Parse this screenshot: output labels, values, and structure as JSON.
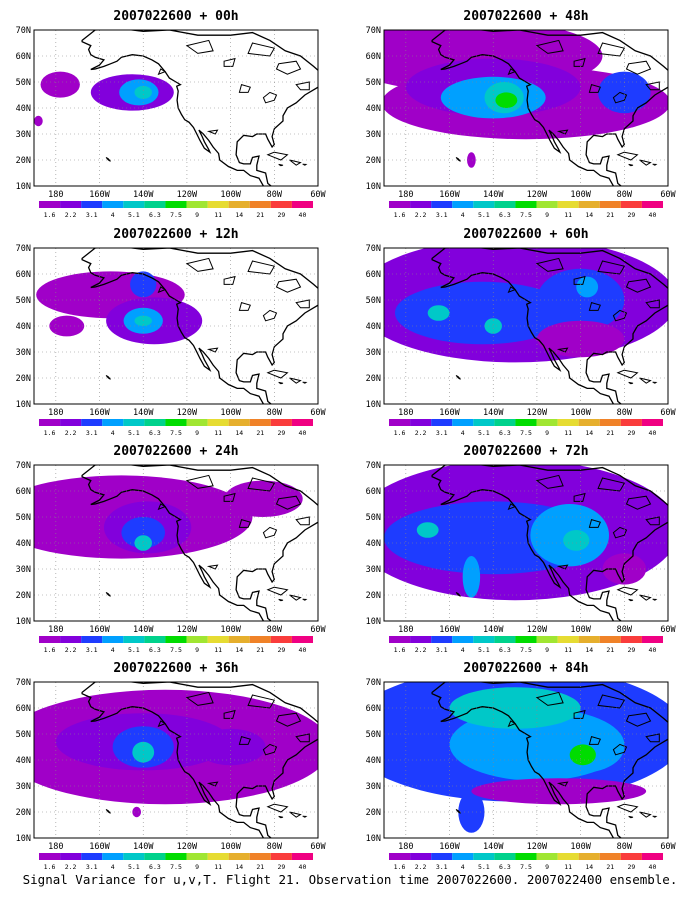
{
  "panels": [
    {
      "title": "2007022600 + 00h",
      "lead": "00h",
      "blobs": [
        {
          "lon": -145,
          "lat": 46,
          "rx": 19,
          "ry": 7,
          "lvl": 1
        },
        {
          "lon": -178,
          "lat": 49,
          "rx": 9,
          "ry": 5,
          "lvl": 0
        },
        {
          "lon": -142,
          "lat": 46,
          "rx": 9,
          "ry": 5,
          "lvl": 3
        },
        {
          "lon": -140,
          "lat": 46,
          "rx": 4,
          "ry": 2.5,
          "lvl": 4
        },
        {
          "lon": -188,
          "lat": 35,
          "rx": 2,
          "ry": 2,
          "lvl": 0
        }
      ]
    },
    {
      "title": "2007022600 + 48h",
      "lead": "48h",
      "blobs": [
        {
          "lon": -150,
          "lat": 60,
          "rx": 60,
          "ry": 14,
          "lvl": 0
        },
        {
          "lon": -125,
          "lat": 42,
          "rx": 66,
          "ry": 14,
          "lvl": 0
        },
        {
          "lon": -140,
          "lat": 48,
          "rx": 40,
          "ry": 11,
          "lvl": 1
        },
        {
          "lon": -140,
          "lat": 44,
          "rx": 24,
          "ry": 8,
          "lvl": 3
        },
        {
          "lon": -135,
          "lat": 44,
          "rx": 9,
          "ry": 6,
          "lvl": 4
        },
        {
          "lon": -134,
          "lat": 43,
          "rx": 5,
          "ry": 3,
          "lvl": 6
        },
        {
          "lon": -80,
          "lat": 46,
          "rx": 12,
          "ry": 8,
          "lvl": 2
        },
        {
          "lon": -150,
          "lat": 20,
          "rx": 2,
          "ry": 3,
          "lvl": 0
        }
      ]
    },
    {
      "title": "2007022600 + 12h",
      "lead": "12h",
      "blobs": [
        {
          "lon": -155,
          "lat": 52,
          "rx": 34,
          "ry": 9,
          "lvl": 0
        },
        {
          "lon": -135,
          "lat": 42,
          "rx": 22,
          "ry": 9,
          "lvl": 1
        },
        {
          "lon": -140,
          "lat": 42,
          "rx": 9,
          "ry": 5,
          "lvl": 3
        },
        {
          "lon": -140,
          "lat": 42,
          "rx": 4,
          "ry": 2,
          "lvl": 4
        },
        {
          "lon": -140,
          "lat": 56,
          "rx": 6,
          "ry": 5,
          "lvl": 2
        },
        {
          "lon": -175,
          "lat": 40,
          "rx": 8,
          "ry": 4,
          "lvl": 0
        }
      ]
    },
    {
      "title": "2007022600 + 60h",
      "lead": "60h",
      "blobs": [
        {
          "lon": -130,
          "lat": 50,
          "rx": 74,
          "ry": 24,
          "lvl": 1
        },
        {
          "lon": -145,
          "lat": 45,
          "rx": 40,
          "ry": 12,
          "lvl": 2
        },
        {
          "lon": -100,
          "lat": 50,
          "rx": 20,
          "ry": 12,
          "lvl": 2
        },
        {
          "lon": -170,
          "lat": 45,
          "rx": 12,
          "ry": 8,
          "lvl": 2
        },
        {
          "lon": -165,
          "lat": 45,
          "rx": 5,
          "ry": 3,
          "lvl": 4
        },
        {
          "lon": -140,
          "lat": 40,
          "rx": 4,
          "ry": 3,
          "lvl": 4
        },
        {
          "lon": -97,
          "lat": 55,
          "rx": 5,
          "ry": 4,
          "lvl": 3
        },
        {
          "lon": -100,
          "lat": 35,
          "rx": 20,
          "ry": 7,
          "lvl": 0
        }
      ]
    },
    {
      "title": "2007022600 + 24h",
      "lead": "24h",
      "blobs": [
        {
          "lon": -150,
          "lat": 50,
          "rx": 60,
          "ry": 16,
          "lvl": 0
        },
        {
          "lon": -138,
          "lat": 46,
          "rx": 20,
          "ry": 10,
          "lvl": 1
        },
        {
          "lon": -140,
          "lat": 44,
          "rx": 10,
          "ry": 6,
          "lvl": 2
        },
        {
          "lon": -140,
          "lat": 40,
          "rx": 4,
          "ry": 3,
          "lvl": 4
        },
        {
          "lon": -85,
          "lat": 57,
          "rx": 18,
          "ry": 7,
          "lvl": 0
        }
      ]
    },
    {
      "title": "2007022600 + 72h",
      "lead": "72h",
      "blobs": [
        {
          "lon": -130,
          "lat": 45,
          "rx": 75,
          "ry": 27,
          "lvl": 1
        },
        {
          "lon": -140,
          "lat": 42,
          "rx": 50,
          "ry": 14,
          "lvl": 2
        },
        {
          "lon": -105,
          "lat": 43,
          "rx": 18,
          "ry": 12,
          "lvl": 3
        },
        {
          "lon": -102,
          "lat": 41,
          "rx": 6,
          "ry": 4,
          "lvl": 4
        },
        {
          "lon": -150,
          "lat": 27,
          "rx": 4,
          "ry": 8,
          "lvl": 3
        },
        {
          "lon": -170,
          "lat": 45,
          "rx": 5,
          "ry": 3,
          "lvl": 4
        },
        {
          "lon": -80,
          "lat": 30,
          "rx": 10,
          "ry": 6,
          "lvl": 0
        }
      ]
    },
    {
      "title": "2007022600 + 36h",
      "lead": "36h",
      "blobs": [
        {
          "lon": -130,
          "lat": 45,
          "rx": 76,
          "ry": 22,
          "lvl": 0
        },
        {
          "lon": -140,
          "lat": 47,
          "rx": 40,
          "ry": 11,
          "lvl": 1
        },
        {
          "lon": -140,
          "lat": 45,
          "rx": 14,
          "ry": 8,
          "lvl": 2
        },
        {
          "lon": -140,
          "lat": 43,
          "rx": 5,
          "ry": 4,
          "lvl": 4
        },
        {
          "lon": -100,
          "lat": 45,
          "rx": 16,
          "ry": 7,
          "lvl": 1
        },
        {
          "lon": -143,
          "lat": 20,
          "rx": 2,
          "ry": 2,
          "lvl": 0
        }
      ]
    },
    {
      "title": "2007022600 + 84h",
      "lead": "84h",
      "blobs": [
        {
          "lon": -130,
          "lat": 50,
          "rx": 78,
          "ry": 26,
          "lvl": 2
        },
        {
          "lon": -120,
          "lat": 46,
          "rx": 40,
          "ry": 14,
          "lvl": 3
        },
        {
          "lon": -100,
          "lat": 45,
          "rx": 20,
          "ry": 10,
          "lvl": 3
        },
        {
          "lon": -99,
          "lat": 42,
          "rx": 6,
          "ry": 4,
          "lvl": 6
        },
        {
          "lon": -130,
          "lat": 60,
          "rx": 30,
          "ry": 8,
          "lvl": 4
        },
        {
          "lon": -150,
          "lat": 20,
          "rx": 6,
          "ry": 8,
          "lvl": 2
        },
        {
          "lon": -110,
          "lat": 28,
          "rx": 40,
          "ry": 5,
          "lvl": 0
        }
      ]
    }
  ],
  "lat_labels": [
    "70N",
    "60N",
    "50N",
    "40N",
    "30N",
    "20N",
    "10N"
  ],
  "lat_values": [
    70,
    60,
    50,
    40,
    30,
    20,
    10
  ],
  "lon_labels": [
    "180",
    "160W",
    "140W",
    "120W",
    "100W",
    "80W",
    "60W"
  ],
  "lon_values": [
    -180,
    -160,
    -140,
    -120,
    -100,
    -80,
    -60
  ],
  "map_extent": {
    "lon_min": -190,
    "lon_max": -60,
    "lat_min": 10,
    "lat_max": 70
  },
  "colorbar": {
    "labels": [
      "1.6",
      "2.2",
      "3.1",
      "4",
      "5.1",
      "6.3",
      "7.5",
      "9",
      "11",
      "14",
      "21",
      "29",
      "40"
    ],
    "colors": [
      "#a000c8",
      "#8200dc",
      "#1e3cff",
      "#00a0ff",
      "#00c8c8",
      "#00d28c",
      "#00dc00",
      "#a0e632",
      "#e6dc32",
      "#e6af2d",
      "#f08228",
      "#fa3c3c",
      "#f00082"
    ]
  },
  "caption": "Signal Variance for u,v,T. Flight 21. Observation time 2007022600. 2007022400 ensemble."
}
